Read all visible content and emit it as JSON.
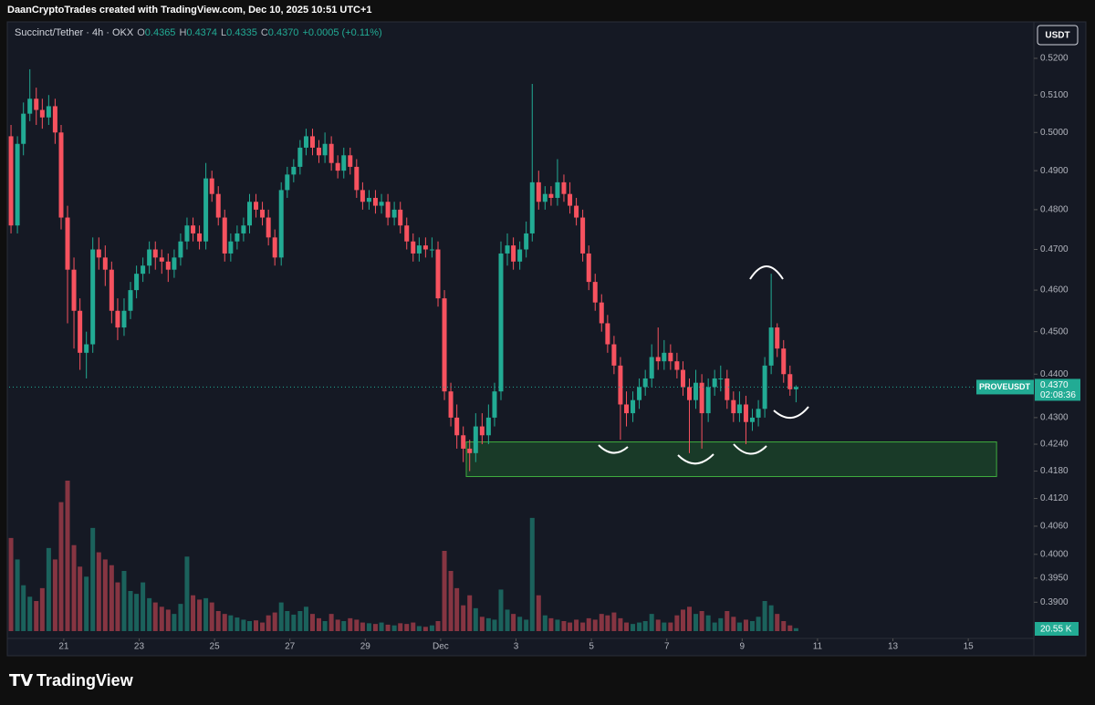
{
  "header": {
    "credit": "DaanCryptoTrades created with TradingView.com, Dec 10, 2025 10:51 UTC+1",
    "brand": "TradingView"
  },
  "chart_data": {
    "type": "candlestick",
    "symbol": "Succinct/Tether · 4h · OKX",
    "legend": [
      {
        "key": "O",
        "value": "0.4365"
      },
      {
        "key": "H",
        "value": "0.4374"
      },
      {
        "key": "L",
        "value": "0.4335"
      },
      {
        "key": "C",
        "value": "0.4370"
      }
    ],
    "change": "+0.0005 (+0.11%)",
    "currency": "USDT",
    "ticker": "PROVEUSDT",
    "last_price": {
      "value": 0.437,
      "label": "0.4370"
    },
    "countdown": "02:08:36",
    "last_volume_label": "20.55 K",
    "up_color": "#22ab94",
    "down_color": "#f7525f",
    "log_scale": true,
    "xlim": [
      19.55,
      46.74
    ],
    "ylim": [
      0.3826,
      0.5291
    ],
    "xticks": [
      {
        "value": 21,
        "label": "21"
      },
      {
        "value": 23,
        "label": "23"
      },
      {
        "value": 25,
        "label": "25"
      },
      {
        "value": 27,
        "label": "27"
      },
      {
        "value": 29,
        "label": "29"
      },
      {
        "value": 31,
        "label": "Dec"
      },
      {
        "value": 33,
        "label": "3"
      },
      {
        "value": 35,
        "label": "5"
      },
      {
        "value": 37,
        "label": "7"
      },
      {
        "value": 39,
        "label": "9"
      },
      {
        "value": 41,
        "label": "11"
      },
      {
        "value": 43,
        "label": "13"
      },
      {
        "value": 45,
        "label": "15"
      }
    ],
    "yticks": [
      {
        "value": 0.52,
        "label": "0.5200"
      },
      {
        "value": 0.51,
        "label": "0.5100"
      },
      {
        "value": 0.5,
        "label": "0.5000"
      },
      {
        "value": 0.49,
        "label": "0.4900"
      },
      {
        "value": 0.48,
        "label": "0.4800"
      },
      {
        "value": 0.47,
        "label": "0.4700"
      },
      {
        "value": 0.46,
        "label": "0.4600"
      },
      {
        "value": 0.45,
        "label": "0.4500"
      },
      {
        "value": 0.44,
        "label": "0.4400"
      },
      {
        "value": 0.43,
        "label": "0.4300"
      },
      {
        "value": 0.424,
        "label": "0.4240"
      },
      {
        "value": 0.418,
        "label": "0.4180"
      },
      {
        "value": 0.412,
        "label": "0.4120"
      },
      {
        "value": 0.406,
        "label": "0.4060"
      },
      {
        "value": 0.4,
        "label": "0.4000"
      },
      {
        "value": 0.395,
        "label": "0.3950"
      },
      {
        "value": 0.39,
        "label": "0.3900"
      }
    ],
    "zone": {
      "x": [
        31.68,
        45.75
      ],
      "y": [
        0.4168,
        0.4245
      ]
    },
    "x": [
      19.6,
      19.77,
      19.93,
      20.1,
      20.27,
      20.43,
      20.6,
      20.77,
      20.93,
      21.1,
      21.27,
      21.43,
      21.6,
      21.77,
      21.93,
      22.1,
      22.27,
      22.43,
      22.6,
      22.77,
      22.93,
      23.1,
      23.27,
      23.43,
      23.6,
      23.77,
      23.93,
      24.1,
      24.27,
      24.43,
      24.6,
      24.77,
      24.93,
      25.1,
      25.27,
      25.43,
      25.6,
      25.77,
      25.93,
      26.1,
      26.27,
      26.43,
      26.6,
      26.77,
      26.93,
      27.1,
      27.27,
      27.43,
      27.6,
      27.77,
      27.93,
      28.1,
      28.27,
      28.43,
      28.6,
      28.77,
      28.93,
      29.1,
      29.27,
      29.43,
      29.6,
      29.77,
      29.93,
      30.1,
      30.27,
      30.43,
      30.6,
      30.77,
      30.93,
      31.1,
      31.27,
      31.43,
      31.6,
      31.77,
      31.93,
      32.1,
      32.27,
      32.43,
      32.6,
      32.77,
      32.93,
      33.1,
      33.27,
      33.43,
      33.6,
      33.77,
      33.93,
      34.1,
      34.27,
      34.43,
      34.6,
      34.77,
      34.93,
      35.1,
      35.27,
      35.43,
      35.6,
      35.77,
      35.93,
      36.1,
      36.27,
      36.43,
      36.6,
      36.77,
      36.93,
      37.1,
      37.27,
      37.43,
      37.6,
      37.77,
      37.93,
      38.1,
      38.27,
      38.43,
      38.6,
      38.77,
      38.93,
      39.1,
      39.27,
      39.43,
      39.6,
      39.77,
      39.93,
      40.1,
      40.27,
      40.43
    ],
    "ohlc": [
      [
        0.499,
        0.502,
        0.474,
        0.476
      ],
      [
        0.476,
        0.499,
        0.474,
        0.497
      ],
      [
        0.497,
        0.508,
        0.494,
        0.505
      ],
      [
        0.505,
        0.517,
        0.503,
        0.509
      ],
      [
        0.509,
        0.512,
        0.502,
        0.506
      ],
      [
        0.506,
        0.509,
        0.501,
        0.504
      ],
      [
        0.504,
        0.51,
        0.502,
        0.507
      ],
      [
        0.507,
        0.509,
        0.497,
        0.5
      ],
      [
        0.5,
        0.502,
        0.475,
        0.478
      ],
      [
        0.478,
        0.481,
        0.452,
        0.465
      ],
      [
        0.465,
        0.468,
        0.446,
        0.455
      ],
      [
        0.455,
        0.458,
        0.441,
        0.445
      ],
      [
        0.445,
        0.45,
        0.439,
        0.447
      ],
      [
        0.447,
        0.473,
        0.445,
        0.47
      ],
      [
        0.47,
        0.473,
        0.465,
        0.468
      ],
      [
        0.468,
        0.471,
        0.461,
        0.465
      ],
      [
        0.465,
        0.467,
        0.452,
        0.455
      ],
      [
        0.455,
        0.458,
        0.448,
        0.451
      ],
      [
        0.451,
        0.458,
        0.449,
        0.455
      ],
      [
        0.455,
        0.462,
        0.453,
        0.46
      ],
      [
        0.46,
        0.466,
        0.458,
        0.464
      ],
      [
        0.464,
        0.468,
        0.462,
        0.466
      ],
      [
        0.466,
        0.472,
        0.464,
        0.47
      ],
      [
        0.47,
        0.472,
        0.465,
        0.468
      ],
      [
        0.468,
        0.47,
        0.464,
        0.467
      ],
      [
        0.467,
        0.469,
        0.462,
        0.465
      ],
      [
        0.465,
        0.47,
        0.463,
        0.468
      ],
      [
        0.468,
        0.474,
        0.466,
        0.472
      ],
      [
        0.472,
        0.478,
        0.47,
        0.476
      ],
      [
        0.476,
        0.478,
        0.472,
        0.474
      ],
      [
        0.474,
        0.476,
        0.47,
        0.472
      ],
      [
        0.472,
        0.492,
        0.47,
        0.488
      ],
      [
        0.488,
        0.49,
        0.482,
        0.484
      ],
      [
        0.484,
        0.486,
        0.476,
        0.478
      ],
      [
        0.478,
        0.48,
        0.467,
        0.469
      ],
      [
        0.469,
        0.474,
        0.467,
        0.472
      ],
      [
        0.472,
        0.476,
        0.47,
        0.474
      ],
      [
        0.474,
        0.478,
        0.472,
        0.476
      ],
      [
        0.476,
        0.484,
        0.474,
        0.482
      ],
      [
        0.482,
        0.484,
        0.478,
        0.48
      ],
      [
        0.48,
        0.482,
        0.476,
        0.478
      ],
      [
        0.478,
        0.48,
        0.471,
        0.473
      ],
      [
        0.473,
        0.475,
        0.466,
        0.468
      ],
      [
        0.468,
        0.487,
        0.466,
        0.485
      ],
      [
        0.485,
        0.491,
        0.483,
        0.489
      ],
      [
        0.489,
        0.493,
        0.487,
        0.491
      ],
      [
        0.491,
        0.498,
        0.489,
        0.496
      ],
      [
        0.496,
        0.501,
        0.494,
        0.499
      ],
      [
        0.499,
        0.501,
        0.494,
        0.496
      ],
      [
        0.496,
        0.498,
        0.492,
        0.494
      ],
      [
        0.494,
        0.5,
        0.492,
        0.497
      ],
      [
        0.497,
        0.499,
        0.49,
        0.492
      ],
      [
        0.492,
        0.494,
        0.488,
        0.49
      ],
      [
        0.49,
        0.496,
        0.488,
        0.494
      ],
      [
        0.494,
        0.496,
        0.489,
        0.491
      ],
      [
        0.491,
        0.493,
        0.483,
        0.485
      ],
      [
        0.485,
        0.487,
        0.48,
        0.482
      ],
      [
        0.482,
        0.485,
        0.48,
        0.483
      ],
      [
        0.483,
        0.485,
        0.479,
        0.481
      ],
      [
        0.481,
        0.484,
        0.479,
        0.482
      ],
      [
        0.482,
        0.484,
        0.476,
        0.478
      ],
      [
        0.478,
        0.482,
        0.476,
        0.48
      ],
      [
        0.48,
        0.482,
        0.474,
        0.476
      ],
      [
        0.476,
        0.478,
        0.47,
        0.472
      ],
      [
        0.472,
        0.474,
        0.467,
        0.469
      ],
      [
        0.469,
        0.473,
        0.467,
        0.471
      ],
      [
        0.471,
        0.473,
        0.468,
        0.47
      ],
      [
        0.47,
        0.473,
        0.468,
        0.47
      ],
      [
        0.47,
        0.472,
        0.456,
        0.458
      ],
      [
        0.458,
        0.46,
        0.434,
        0.436
      ],
      [
        0.436,
        0.438,
        0.428,
        0.43
      ],
      [
        0.43,
        0.433,
        0.423,
        0.426
      ],
      [
        0.426,
        0.428,
        0.42,
        0.423
      ],
      [
        0.423,
        0.425,
        0.418,
        0.422
      ],
      [
        0.422,
        0.431,
        0.42,
        0.428
      ],
      [
        0.428,
        0.431,
        0.424,
        0.426
      ],
      [
        0.426,
        0.433,
        0.424,
        0.43
      ],
      [
        0.43,
        0.438,
        0.428,
        0.436
      ],
      [
        0.436,
        0.472,
        0.434,
        0.469
      ],
      [
        0.469,
        0.474,
        0.466,
        0.471
      ],
      [
        0.471,
        0.473,
        0.465,
        0.467
      ],
      [
        0.467,
        0.472,
        0.465,
        0.47
      ],
      [
        0.47,
        0.477,
        0.468,
        0.474
      ],
      [
        0.474,
        0.513,
        0.472,
        0.487
      ],
      [
        0.487,
        0.49,
        0.48,
        0.482
      ],
      [
        0.482,
        0.486,
        0.48,
        0.484
      ],
      [
        0.484,
        0.486,
        0.481,
        0.483
      ],
      [
        0.483,
        0.493,
        0.481,
        0.487
      ],
      [
        0.487,
        0.489,
        0.482,
        0.484
      ],
      [
        0.484,
        0.487,
        0.479,
        0.481
      ],
      [
        0.481,
        0.483,
        0.476,
        0.478
      ],
      [
        0.478,
        0.48,
        0.467,
        0.469
      ],
      [
        0.469,
        0.471,
        0.46,
        0.462
      ],
      [
        0.462,
        0.464,
        0.455,
        0.457
      ],
      [
        0.457,
        0.459,
        0.45,
        0.452
      ],
      [
        0.452,
        0.454,
        0.445,
        0.447
      ],
      [
        0.447,
        0.449,
        0.44,
        0.442
      ],
      [
        0.442,
        0.444,
        0.425,
        0.433
      ],
      [
        0.433,
        0.436,
        0.428,
        0.431
      ],
      [
        0.431,
        0.436,
        0.429,
        0.434
      ],
      [
        0.434,
        0.439,
        0.432,
        0.437
      ],
      [
        0.437,
        0.441,
        0.435,
        0.439
      ],
      [
        0.439,
        0.447,
        0.437,
        0.444
      ],
      [
        0.444,
        0.451,
        0.441,
        0.443
      ],
      [
        0.443,
        0.448,
        0.441,
        0.445
      ],
      [
        0.445,
        0.447,
        0.441,
        0.443
      ],
      [
        0.443,
        0.445,
        0.439,
        0.441
      ],
      [
        0.441,
        0.443,
        0.435,
        0.437
      ],
      [
        0.437,
        0.439,
        0.422,
        0.434
      ],
      [
        0.434,
        0.441,
        0.432,
        0.438
      ],
      [
        0.438,
        0.44,
        0.423,
        0.431
      ],
      [
        0.431,
        0.439,
        0.429,
        0.437
      ],
      [
        0.437,
        0.441,
        0.435,
        0.439
      ],
      [
        0.439,
        0.442,
        0.436,
        0.439
      ],
      [
        0.439,
        0.441,
        0.432,
        0.434
      ],
      [
        0.434,
        0.436,
        0.429,
        0.431
      ],
      [
        0.431,
        0.436,
        0.429,
        0.433
      ],
      [
        0.433,
        0.435,
        0.424,
        0.429
      ],
      [
        0.429,
        0.432,
        0.427,
        0.43
      ],
      [
        0.43,
        0.434,
        0.428,
        0.432
      ],
      [
        0.432,
        0.444,
        0.43,
        0.442
      ],
      [
        0.442,
        0.464,
        0.44,
        0.451
      ],
      [
        0.451,
        0.452,
        0.444,
        0.446
      ],
      [
        0.446,
        0.448,
        0.438,
        0.44
      ],
      [
        0.44,
        0.442,
        0.435,
        0.4365
      ],
      [
        0.4365,
        0.4374,
        0.4335,
        0.437
      ]
    ],
    "volume": [
      650,
      500,
      320,
      240,
      210,
      300,
      580,
      500,
      900,
      1050,
      600,
      450,
      380,
      720,
      550,
      500,
      460,
      340,
      420,
      280,
      260,
      340,
      230,
      200,
      170,
      150,
      120,
      190,
      520,
      250,
      220,
      230,
      200,
      140,
      120,
      110,
      95,
      80,
      70,
      75,
      60,
      110,
      130,
      200,
      140,
      115,
      140,
      170,
      120,
      90,
      70,
      120,
      80,
      70,
      90,
      80,
      60,
      55,
      50,
      60,
      45,
      40,
      55,
      50,
      60,
      35,
      30,
      40,
      70,
      560,
      420,
      300,
      180,
      250,
      160,
      100,
      90,
      80,
      290,
      150,
      120,
      100,
      80,
      790,
      250,
      110,
      90,
      80,
      70,
      60,
      80,
      60,
      90,
      80,
      120,
      110,
      130,
      90,
      60,
      50,
      60,
      70,
      120,
      80,
      60,
      60,
      110,
      150,
      170,
      120,
      140,
      110,
      60,
      90,
      140,
      100,
      60,
      80,
      70,
      100,
      210,
      180,
      120,
      70,
      40,
      20.55
    ]
  }
}
